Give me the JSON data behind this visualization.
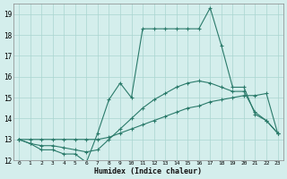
{
  "xlabel": "Humidex (Indice chaleur)",
  "x": [
    0,
    1,
    2,
    3,
    4,
    5,
    6,
    7,
    8,
    9,
    10,
    11,
    12,
    13,
    14,
    15,
    16,
    17,
    18,
    19,
    20,
    21,
    22,
    23
  ],
  "line_spiky": [
    13,
    12.8,
    12.5,
    12.5,
    12.3,
    12.3,
    11.9,
    13.3,
    14.9,
    15.7,
    15.0,
    18.3,
    18.3,
    18.3,
    18.3,
    18.3,
    18.3,
    19.3,
    17.5,
    15.5,
    15.5,
    14.2,
    13.9,
    13.3
  ],
  "line_smooth_hi": [
    13,
    12.8,
    12.7,
    12.7,
    12.6,
    12.5,
    12.4,
    12.5,
    13.0,
    13.5,
    14.0,
    14.5,
    14.9,
    15.2,
    15.5,
    15.7,
    15.8,
    15.7,
    15.5,
    15.3,
    15.3,
    14.3,
    13.9,
    13.3
  ],
  "line_smooth_lo": [
    13,
    13.0,
    13.0,
    13.0,
    13.0,
    13.0,
    13.0,
    13.0,
    13.1,
    13.3,
    13.5,
    13.7,
    13.9,
    14.1,
    14.3,
    14.5,
    14.6,
    14.8,
    14.9,
    15.0,
    15.1,
    15.1,
    15.2,
    13.3
  ],
  "line_color": "#2a7a6a",
  "bg_color": "#d4eeec",
  "grid_color": "#aad5d0",
  "ylim": [
    12,
    19.5
  ],
  "xlim": [
    -0.5,
    23.5
  ],
  "yticks": [
    12,
    13,
    14,
    15,
    16,
    17,
    18,
    19
  ],
  "xticks": [
    0,
    1,
    2,
    3,
    4,
    5,
    6,
    7,
    8,
    9,
    10,
    11,
    12,
    13,
    14,
    15,
    16,
    17,
    18,
    19,
    20,
    21,
    22,
    23
  ]
}
